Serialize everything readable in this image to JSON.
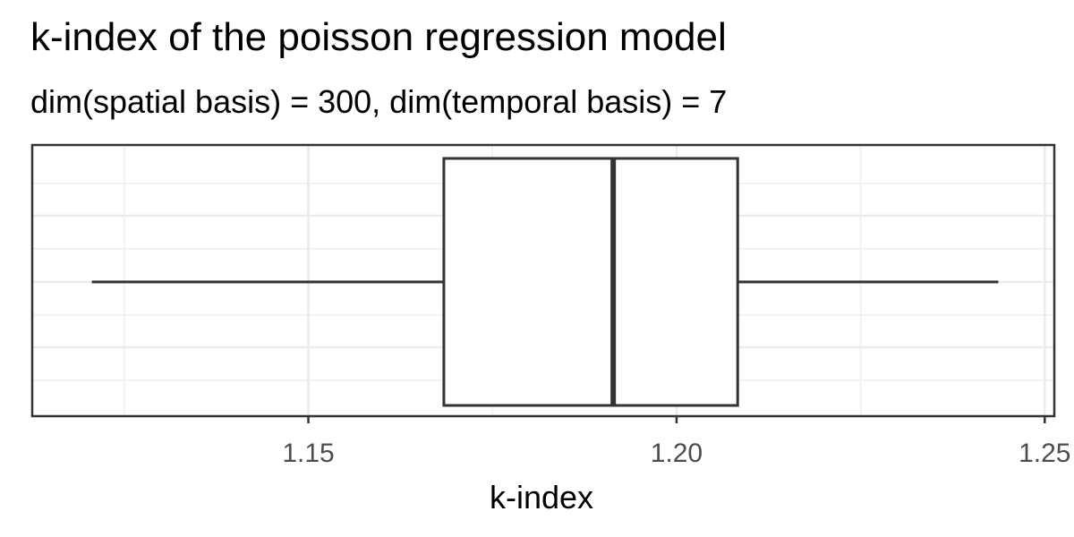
{
  "chart_data": {
    "type": "boxplot",
    "title": "k-index of the poisson regression model",
    "subtitle": "dim(spatial basis) = 300, dim(temporal basis) = 7",
    "xlabel": "k-index",
    "ylabel": "",
    "xlim": [
      1.1125,
      1.2513
    ],
    "x_ticks": [
      1.15,
      1.2,
      1.25
    ],
    "x_tick_labels": [
      "1.15",
      "1.20",
      "1.25"
    ],
    "grid": true,
    "legend": "none",
    "box": {
      "whisker_low": 1.1206,
      "q1": 1.1684,
      "median": 1.1914,
      "q3": 1.2083,
      "whisker_high": 1.2437
    },
    "colors": {
      "box_stroke": "#333333",
      "box_fill": "#ffffff",
      "grid_major": "#ebebeb",
      "grid_minor": "#f2f2f2",
      "panel_border": "#333333",
      "tick_text": "#4d4d4d",
      "axis_title": "#000000"
    }
  }
}
